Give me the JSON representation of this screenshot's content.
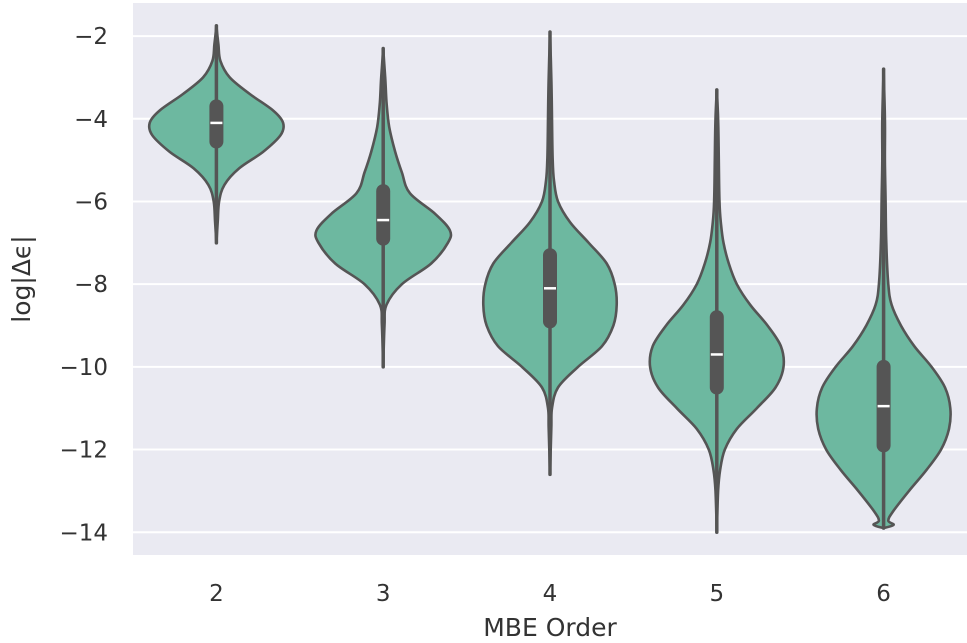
{
  "chart_data": {
    "type": "violin",
    "xlabel": "MBE Order",
    "ylabel": "log|Δϵ|",
    "ylim": [
      -14.55,
      -1.2
    ],
    "yticks": [
      -2,
      -4,
      -6,
      -8,
      -10,
      -12,
      -14
    ],
    "ytick_labels": [
      "−2",
      "−4",
      "−6",
      "−8",
      "−10",
      "−12",
      "−14"
    ],
    "categories": [
      "2",
      "3",
      "4",
      "5",
      "6"
    ],
    "grid": true,
    "colors": {
      "background": "#EAEAF2",
      "grid": "#FFFFFF",
      "violin_fill": "#6DB8A0",
      "violin_edge": "#555555",
      "box": "#555555",
      "median": "#FFFFFF"
    },
    "violins": [
      {
        "category": "2",
        "min": -7.0,
        "max": -1.75,
        "q1": -4.55,
        "median": -4.1,
        "q3": -3.7,
        "profile": [
          [
            -7.0,
            0
          ],
          [
            -6.5,
            0.02
          ],
          [
            -6.0,
            0.04
          ],
          [
            -5.6,
            0.12
          ],
          [
            -5.2,
            0.34
          ],
          [
            -4.8,
            0.7
          ],
          [
            -4.4,
            0.96
          ],
          [
            -4.1,
            1.0
          ],
          [
            -3.8,
            0.85
          ],
          [
            -3.4,
            0.5
          ],
          [
            -3.0,
            0.2
          ],
          [
            -2.6,
            0.06
          ],
          [
            -2.2,
            0.03
          ],
          [
            -1.75,
            0
          ]
        ]
      },
      {
        "category": "3",
        "min": -10.0,
        "max": -2.3,
        "q1": -6.9,
        "median": -6.45,
        "q3": -5.75,
        "profile": [
          [
            -10.0,
            0
          ],
          [
            -9.0,
            0.02
          ],
          [
            -8.5,
            0.05
          ],
          [
            -8.0,
            0.28
          ],
          [
            -7.5,
            0.72
          ],
          [
            -7.0,
            0.97
          ],
          [
            -6.7,
            1.0
          ],
          [
            -6.3,
            0.78
          ],
          [
            -5.8,
            0.4
          ],
          [
            -5.3,
            0.28
          ],
          [
            -4.8,
            0.18
          ],
          [
            -4.2,
            0.09
          ],
          [
            -3.6,
            0.05
          ],
          [
            -3.0,
            0.03
          ],
          [
            -2.3,
            0
          ]
        ]
      },
      {
        "category": "4",
        "min": -12.6,
        "max": -1.9,
        "q1": -8.9,
        "median": -8.1,
        "q3": -7.3,
        "profile": [
          [
            -12.6,
            0
          ],
          [
            -11.5,
            0.02
          ],
          [
            -11.0,
            0.03
          ],
          [
            -10.5,
            0.12
          ],
          [
            -10.0,
            0.42
          ],
          [
            -9.5,
            0.78
          ],
          [
            -9.0,
            0.95
          ],
          [
            -8.5,
            1.0
          ],
          [
            -8.0,
            0.97
          ],
          [
            -7.5,
            0.85
          ],
          [
            -7.0,
            0.58
          ],
          [
            -6.5,
            0.3
          ],
          [
            -6.0,
            0.12
          ],
          [
            -5.5,
            0.06
          ],
          [
            -5.0,
            0.04
          ],
          [
            -4.0,
            0.03
          ],
          [
            -3.0,
            0.02
          ],
          [
            -1.9,
            0
          ]
        ]
      },
      {
        "category": "5",
        "min": -14.0,
        "max": -3.3,
        "q1": -10.5,
        "median": -9.7,
        "q3": -8.8,
        "profile": [
          [
            -14.0,
            0
          ],
          [
            -13.0,
            0.02
          ],
          [
            -12.5,
            0.05
          ],
          [
            -12.0,
            0.12
          ],
          [
            -11.5,
            0.3
          ],
          [
            -11.0,
            0.6
          ],
          [
            -10.5,
            0.88
          ],
          [
            -10.0,
            1.0
          ],
          [
            -9.5,
            0.96
          ],
          [
            -9.0,
            0.76
          ],
          [
            -8.5,
            0.5
          ],
          [
            -8.0,
            0.3
          ],
          [
            -7.5,
            0.18
          ],
          [
            -7.0,
            0.1
          ],
          [
            -6.5,
            0.06
          ],
          [
            -6.0,
            0.04
          ],
          [
            -5.0,
            0.03
          ],
          [
            -4.0,
            0.02
          ],
          [
            -3.3,
            0
          ]
        ]
      },
      {
        "category": "6",
        "min": -13.9,
        "max": -2.8,
        "q1": -11.9,
        "median": -10.95,
        "q3": -10.0,
        "profile": [
          [
            -13.9,
            0
          ],
          [
            -13.82,
            0.15
          ],
          [
            -13.72,
            0.07
          ],
          [
            -13.5,
            0.14
          ],
          [
            -13.0,
            0.38
          ],
          [
            -12.5,
            0.64
          ],
          [
            -12.0,
            0.86
          ],
          [
            -11.5,
            0.98
          ],
          [
            -11.0,
            1.0
          ],
          [
            -10.5,
            0.92
          ],
          [
            -10.0,
            0.72
          ],
          [
            -9.5,
            0.46
          ],
          [
            -9.0,
            0.26
          ],
          [
            -8.5,
            0.12
          ],
          [
            -8.0,
            0.07
          ],
          [
            -7.0,
            0.04
          ],
          [
            -6.0,
            0.03
          ],
          [
            -5.0,
            0.02
          ],
          [
            -4.0,
            0.02
          ],
          [
            -2.8,
            0
          ]
        ]
      }
    ]
  }
}
